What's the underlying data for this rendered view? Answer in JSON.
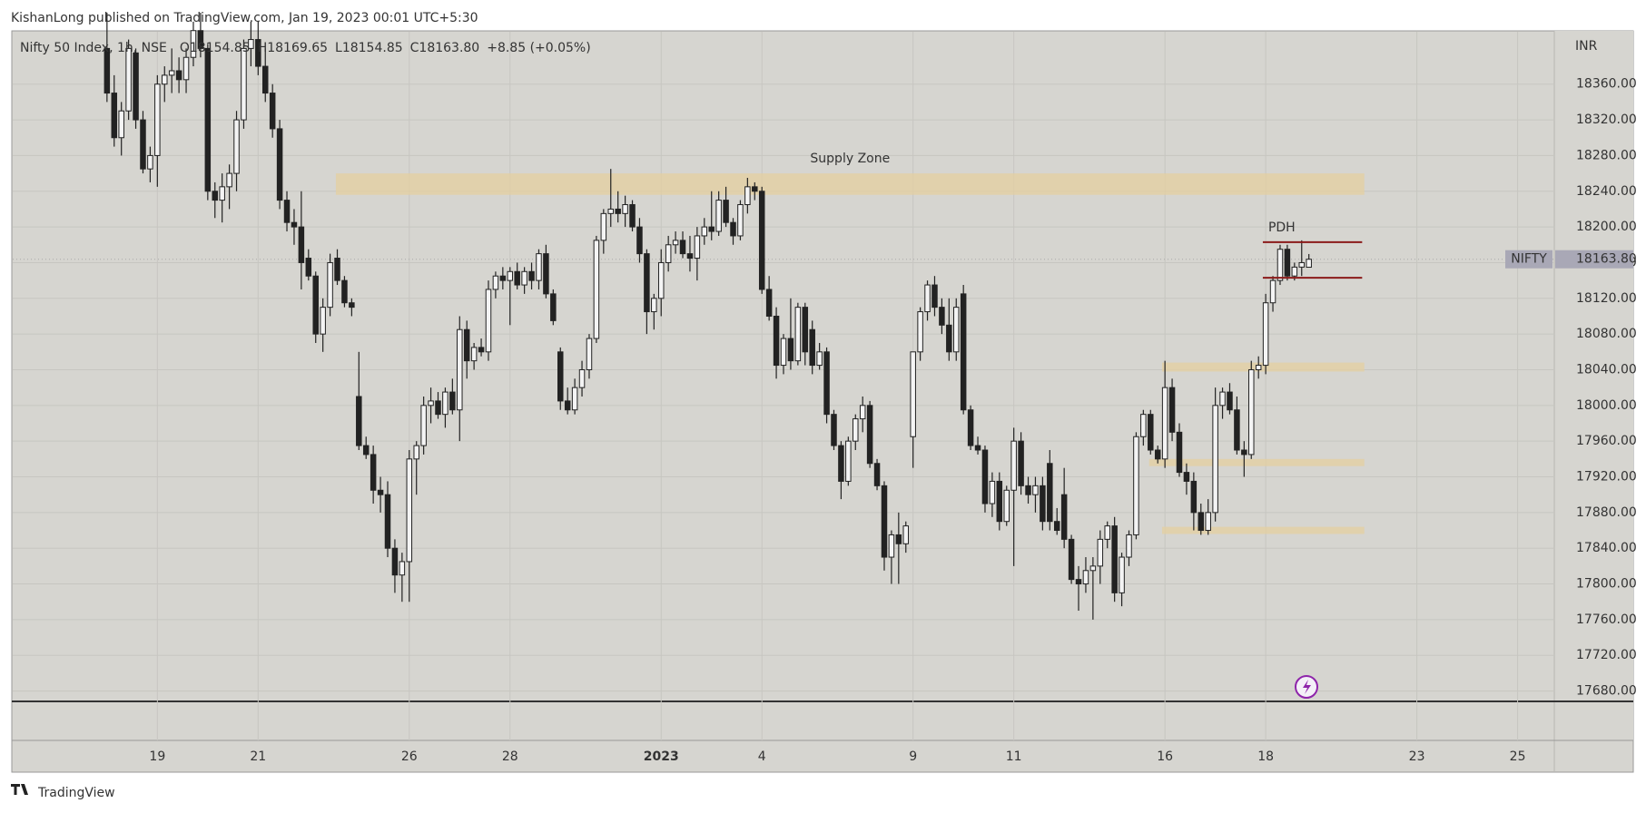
{
  "header": {
    "publisher": "KishanLong published on TradingView.com, Jan 19, 2023 00:01 UTC+5:30"
  },
  "footer": {
    "brand": "TradingView"
  },
  "chart_data": {
    "type": "candlestick",
    "title": "Nifty 50 Index, 1h, NSE",
    "ohlc_text": [
      "O18154.85",
      "H18169.65",
      "L18154.85",
      "C18163.80",
      "+8.85 (+0.05%)"
    ],
    "y_axis_label": "INR",
    "open": [
      18400,
      18350,
      18300,
      18330,
      18395,
      18320,
      18265,
      18280,
      18360,
      18370,
      18375,
      18365,
      18390,
      18420,
      18400,
      18240,
      18230,
      18245,
      18260,
      18320,
      18400,
      18410,
      18380,
      18350,
      18310,
      18230,
      18205,
      18200,
      18165,
      18145,
      18080,
      18110,
      18165,
      18140,
      18115,
      18010,
      17955,
      17945,
      17905,
      17900,
      17840,
      17810,
      17825,
      17940,
      17955,
      18000,
      18005,
      17990,
      18015,
      17995,
      18085,
      18050,
      18065,
      18060,
      18130,
      18145,
      18140,
      18150,
      18135,
      18150,
      18140,
      18170,
      18125,
      18060,
      18005,
      17995,
      18020,
      18040,
      18075,
      18185,
      18215,
      18220,
      18215,
      18225,
      18200,
      18170,
      18105,
      18120,
      18160,
      18180,
      18185,
      18170,
      18165,
      18190,
      18200,
      18195,
      18230,
      18205,
      18190,
      18225,
      18245,
      18240,
      18130,
      18100,
      18045,
      18075,
      18050,
      18110,
      18085,
      18045,
      18060,
      17990,
      17955,
      17915,
      17960,
      17985,
      18000,
      17935,
      17910,
      17830,
      17855,
      17845,
      17965,
      18060,
      18105,
      18135,
      18110,
      18090,
      18060,
      18125,
      17995,
      17955,
      17950,
      17890,
      17915,
      17870,
      17905,
      17960,
      17910,
      17900,
      17910,
      17935,
      17870,
      17900,
      17850,
      17805,
      17800,
      17815,
      17820,
      17850,
      17865,
      17790,
      17830,
      17855,
      17965,
      17990,
      17950,
      17940,
      18020,
      17970,
      17925,
      17915,
      17880,
      17860,
      17880,
      18000,
      18015,
      17995,
      17950,
      17945,
      18040,
      18045,
      18115,
      18140,
      18175,
      18145,
      18155,
      18154.85
    ],
    "high": [
      18440,
      18370,
      18340,
      18410,
      18400,
      18330,
      18290,
      18370,
      18380,
      18400,
      18390,
      18400,
      18430,
      18440,
      18405,
      18250,
      18260,
      18270,
      18330,
      18410,
      18430,
      18430,
      18400,
      18360,
      18320,
      18240,
      18220,
      18240,
      18175,
      18150,
      18120,
      18170,
      18175,
      18145,
      18120,
      18060,
      17965,
      17955,
      17920,
      17915,
      17850,
      17835,
      17950,
      17960,
      18010,
      18020,
      18015,
      18020,
      18030,
      18100,
      18095,
      18070,
      18075,
      18140,
      18150,
      18155,
      18155,
      18160,
      18155,
      18160,
      18175,
      18180,
      18130,
      18065,
      18020,
      18030,
      18050,
      18080,
      18190,
      18220,
      18265,
      18240,
      18235,
      18230,
      18210,
      18175,
      18125,
      18175,
      18190,
      18195,
      18195,
      18190,
      18200,
      18210,
      18240,
      18240,
      18245,
      18210,
      18230,
      18255,
      18250,
      18245,
      18145,
      18110,
      18080,
      18120,
      18115,
      18115,
      18095,
      18070,
      18065,
      17995,
      17960,
      17965,
      17990,
      18010,
      18005,
      17940,
      17915,
      17860,
      17880,
      17870,
      18060,
      18110,
      18140,
      18145,
      18120,
      18120,
      18120,
      18135,
      18000,
      17965,
      17955,
      17925,
      17925,
      17910,
      17975,
      17970,
      17920,
      17920,
      17920,
      17950,
      17885,
      17930,
      17855,
      17820,
      17830,
      17830,
      17860,
      17870,
      17875,
      17835,
      17860,
      17970,
      17995,
      17995,
      17955,
      18050,
      18030,
      17980,
      17935,
      17925,
      17890,
      17895,
      18020,
      18020,
      18025,
      18010,
      17960,
      18050,
      18055,
      18125,
      18145,
      18180,
      18180,
      18160,
      18185,
      18169.65
    ],
    "low": [
      18340,
      18290,
      18280,
      18320,
      18310,
      18260,
      18250,
      18245,
      18340,
      18350,
      18350,
      18350,
      18380,
      18390,
      18230,
      18210,
      18205,
      18220,
      18240,
      18310,
      18380,
      18370,
      18340,
      18300,
      18220,
      18195,
      18180,
      18130,
      18140,
      18070,
      18060,
      18100,
      18135,
      18110,
      18100,
      17950,
      17940,
      17890,
      17880,
      17830,
      17790,
      17780,
      17780,
      17900,
      17945,
      17980,
      17985,
      17975,
      17990,
      17960,
      18030,
      18040,
      18055,
      18050,
      18120,
      18130,
      18090,
      18130,
      18125,
      18130,
      18130,
      18120,
      18090,
      17995,
      17990,
      17990,
      18010,
      18030,
      18070,
      18170,
      18200,
      18205,
      18200,
      18195,
      18160,
      18080,
      18085,
      18100,
      18150,
      18170,
      18165,
      18150,
      18140,
      18180,
      18185,
      18190,
      18200,
      18180,
      18185,
      18215,
      18230,
      18125,
      18095,
      18030,
      18035,
      18040,
      18045,
      18045,
      18035,
      18040,
      17980,
      17950,
      17895,
      17910,
      17950,
      17970,
      17930,
      17905,
      17815,
      17800,
      17800,
      17835,
      17930,
      18050,
      18095,
      18100,
      18080,
      18050,
      18050,
      17990,
      17950,
      17945,
      17880,
      17875,
      17860,
      17865,
      17820,
      17900,
      17890,
      17880,
      17860,
      17860,
      17855,
      17840,
      17800,
      17770,
      17790,
      17760,
      17800,
      17840,
      17780,
      17775,
      17820,
      17850,
      17955,
      17945,
      17935,
      17930,
      17960,
      17920,
      17900,
      17860,
      17855,
      17855,
      17870,
      17985,
      17990,
      17945,
      17920,
      17940,
      18030,
      18035,
      18105,
      18135,
      18140,
      18140,
      18145,
      18154.85
    ],
    "close": [
      18350,
      18300,
      18330,
      18400,
      18320,
      18265,
      18280,
      18360,
      18370,
      18375,
      18365,
      18390,
      18420,
      18400,
      18240,
      18230,
      18245,
      18260,
      18320,
      18400,
      18410,
      18380,
      18350,
      18310,
      18230,
      18205,
      18200,
      18160,
      18145,
      18080,
      18110,
      18160,
      18140,
      18115,
      18110,
      17955,
      17945,
      17905,
      17900,
      17840,
      17810,
      17825,
      17940,
      17955,
      18000,
      18005,
      17990,
      18015,
      17995,
      18085,
      18050,
      18065,
      18060,
      18130,
      18145,
      18140,
      18150,
      18135,
      18150,
      18140,
      18170,
      18125,
      18095,
      18005,
      17995,
      18020,
      18040,
      18075,
      18185,
      18215,
      18220,
      18215,
      18225,
      18200,
      18170,
      18105,
      18120,
      18160,
      18180,
      18185,
      18170,
      18165,
      18190,
      18200,
      18195,
      18230,
      18205,
      18190,
      18225,
      18245,
      18240,
      18130,
      18100,
      18045,
      18075,
      18050,
      18110,
      18060,
      18045,
      18060,
      17990,
      17955,
      17915,
      17960,
      17985,
      18000,
      17935,
      17910,
      17830,
      17855,
      17845,
      17865,
      18060,
      18105,
      18135,
      18110,
      18090,
      18060,
      18110,
      17995,
      17955,
      17950,
      17890,
      17915,
      17870,
      17905,
      17960,
      17910,
      17900,
      17910,
      17870,
      17870,
      17860,
      17850,
      17805,
      17800,
      17815,
      17820,
      17850,
      17865,
      17790,
      17830,
      17855,
      17965,
      17990,
      17950,
      17940,
      18020,
      17970,
      17925,
      17915,
      17880,
      17860,
      17880,
      18000,
      18015,
      17995,
      17950,
      17945,
      18040,
      18045,
      18115,
      18140,
      18175,
      18145,
      18155,
      18160,
      18163.8
    ],
    "up_color": "#f4f4f4",
    "down_color": "#222222",
    "xlim": [
      -13.1,
      201.1
    ],
    "xticks": [
      {
        "value": 7,
        "label": "19"
      },
      {
        "value": 21,
        "label": "21"
      },
      {
        "value": 42,
        "label": "26"
      },
      {
        "value": 56,
        "label": "28"
      },
      {
        "value": 77,
        "label": "2023"
      },
      {
        "value": 91,
        "label": "4"
      },
      {
        "value": 112,
        "label": "9"
      },
      {
        "value": 126,
        "label": "11"
      },
      {
        "value": 147,
        "label": "16"
      },
      {
        "value": 161,
        "label": "18"
      },
      {
        "value": 182,
        "label": "23"
      },
      {
        "value": 196,
        "label": "25"
      }
    ],
    "ylim": [
      17669.4,
      18418.7
    ],
    "yticks": [
      {
        "value": 17680,
        "label": "17680.00"
      },
      {
        "value": 17720,
        "label": "17720.00"
      },
      {
        "value": 17760,
        "label": "17760.00"
      },
      {
        "value": 17800,
        "label": "17800.00"
      },
      {
        "value": 17840,
        "label": "17840.00"
      },
      {
        "value": 17880,
        "label": "17880.00"
      },
      {
        "value": 17920,
        "label": "17920.00"
      },
      {
        "value": 17960,
        "label": "17960.00"
      },
      {
        "value": 18000,
        "label": "18000.00"
      },
      {
        "value": 18040,
        "label": "18040.00"
      },
      {
        "value": 18080,
        "label": "18080.00"
      },
      {
        "value": 18120,
        "label": "18120.00"
      },
      {
        "value": 18160,
        "label": "18160.00"
      },
      {
        "value": 18200,
        "label": "18200.00"
      },
      {
        "value": 18240,
        "label": "18240.00"
      },
      {
        "value": 18280,
        "label": "18280.00"
      },
      {
        "value": 18320,
        "label": "18320.00"
      },
      {
        "value": 18360,
        "label": "18360.00"
      }
    ],
    "grid": true,
    "zones": [
      {
        "label": "Supply Zone",
        "color": "#e4cfa0",
        "x": [
          31.8,
          174.7
        ],
        "y": [
          18236,
          18260
        ]
      },
      {
        "color": "#e4cfa0",
        "x": [
          146.6,
          174.7
        ],
        "y": [
          18038,
          18048
        ]
      },
      {
        "color": "#e4cfa0",
        "x": [
          144.8,
          174.7
        ],
        "y": [
          17932,
          17940
        ]
      },
      {
        "color": "#e4cfa0",
        "x": [
          146.6,
          174.7
        ],
        "y": [
          17856,
          17864
        ]
      }
    ],
    "lines": [
      {
        "label": "PDH",
        "color": "#8b1a1a",
        "value": 18183,
        "x": [
          160.6,
          174.4
        ]
      },
      {
        "color": "#8b1a1a",
        "value": 18143,
        "x": [
          160.6,
          174.4
        ]
      }
    ],
    "last_price": {
      "symbol": "NIFTY",
      "value": 18163.8,
      "label": "18163.80"
    }
  }
}
